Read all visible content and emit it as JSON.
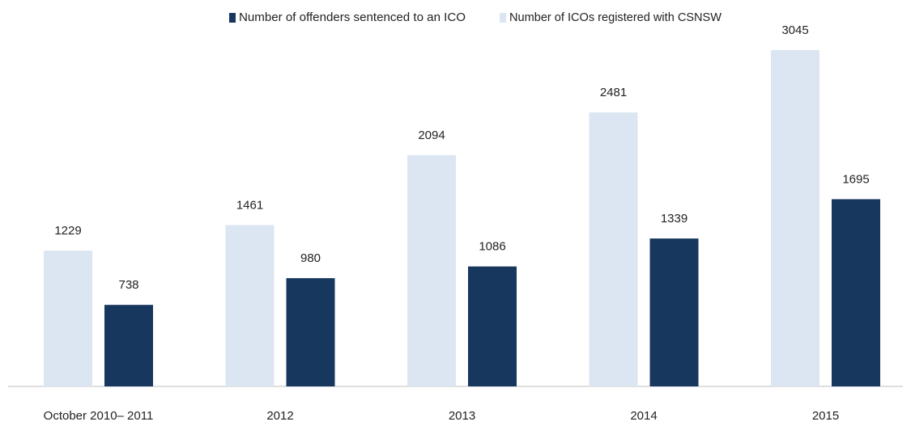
{
  "chart_data": {
    "type": "bar",
    "categories": [
      "October 2010– 2011",
      "2012",
      "2013",
      "2014",
      "2015"
    ],
    "series": [
      {
        "name": "Number of ICOs registered with CSNSW",
        "color": "#dce6f2",
        "values": [
          1229,
          1461,
          2094,
          2481,
          3045
        ]
      },
      {
        "name": "Number of offenders sentenced to an ICO",
        "color": "#17375e",
        "values": [
          738,
          980,
          1086,
          1339,
          1695
        ]
      }
    ]
  }
}
